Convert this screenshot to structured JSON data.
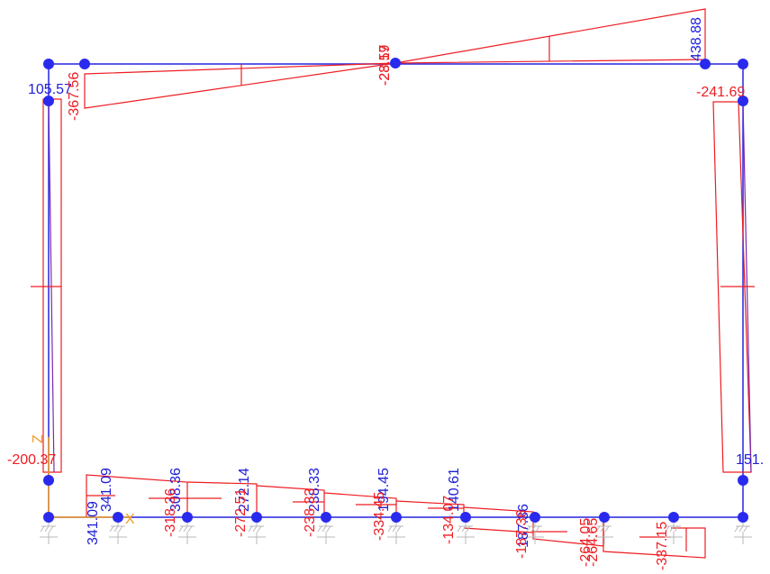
{
  "colors": {
    "frame": "#2525e0",
    "node": "#2a2aee",
    "diagram": "#ee1d23",
    "axis": "#f39a1e",
    "support": "#b9b9b9",
    "label_red": "#ee1d23",
    "label_blue": "#2020d8"
  },
  "axis": {
    "z_label": "Z",
    "x_label": "X"
  },
  "labels": {
    "top_beam_right": "438.88",
    "top_beam_mid_a": "-23.59",
    "top_beam_mid_b": "-28.17",
    "left_col_top_blue": "105.57",
    "left_col_top_red": "-367.56",
    "right_col_top": "-241.69",
    "left_col_bottom": "-200.37",
    "right_col_bottom": "151.",
    "base_1_blue": "341.09",
    "base_1_blue_b": "341.09",
    "base_2_blue": "308.36",
    "base_2_red": "-318.36",
    "base_3_blue": "272.14",
    "base_3_red": "-272.51",
    "base_4_blue": "238.33",
    "base_4_red": "-238.33",
    "base_5_blue": "194.45",
    "base_5_red": "-334.45",
    "base_6_blue": "140.61",
    "base_6_red": "-134.07",
    "base_7_blue": "187.36",
    "base_7_red": "-187.36",
    "base_8_red": "-264.65",
    "base_8_red_b": "-264.05",
    "base_9_red": "-337.15"
  }
}
